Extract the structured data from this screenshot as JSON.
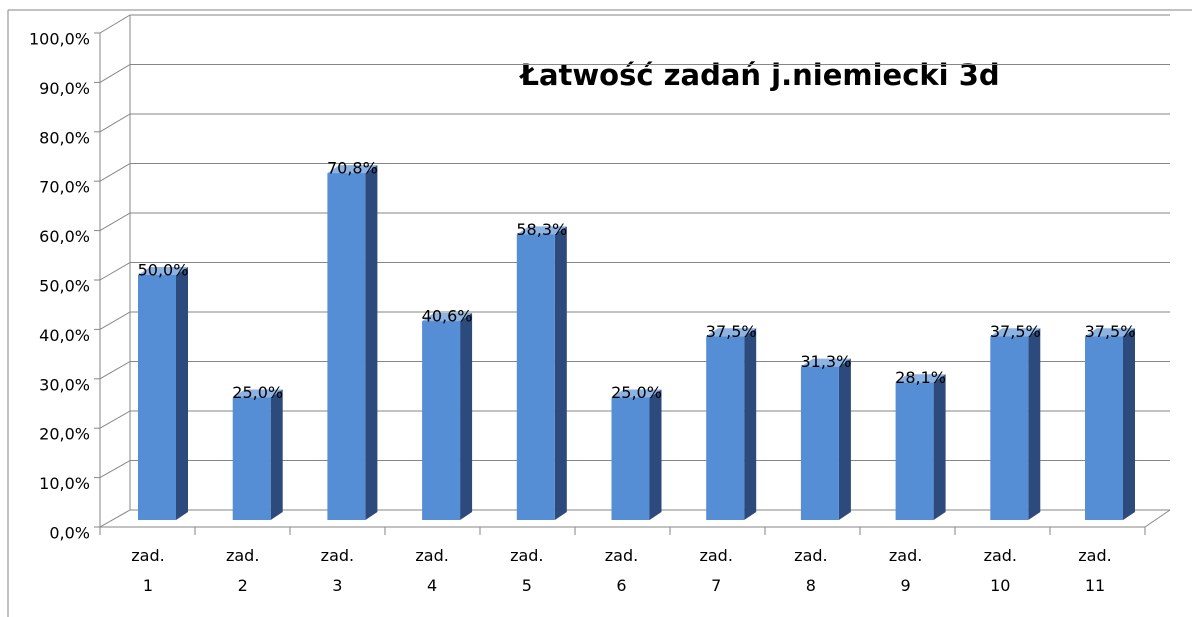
{
  "chart_data": {
    "type": "bar3d",
    "title": "Łatwość zadań j.niemiecki 3d",
    "categories": [
      "zad. 1",
      "zad. 2",
      "zad. 3",
      "zad. 4",
      "zad. 5",
      "zad. 6",
      "zad. 7",
      "zad. 8",
      "zad. 9",
      "zad. 10",
      "zad. 11"
    ],
    "values": [
      50,
      25,
      70.8,
      40.6,
      58.3,
      25,
      37.5,
      31.3,
      28.1,
      37.5,
      37.5
    ],
    "value_labels": [
      "50,0%",
      "25,0%",
      "70,8%",
      "40,6%",
      "58,3%",
      "25,0%",
      "37,5%",
      "31,3%",
      "28,1%",
      "37,5%",
      "37,5%"
    ],
    "color": "#558ed5",
    "ylim": [
      0,
      100
    ],
    "yticks": [
      {
        "value": 0,
        "label": "0,0%"
      },
      {
        "value": 10,
        "label": "10,0%"
      },
      {
        "value": 20,
        "label": "20,0%"
      },
      {
        "value": 30,
        "label": "30,0%"
      },
      {
        "value": 40,
        "label": "40,0%"
      },
      {
        "value": 50,
        "label": "50,0%"
      },
      {
        "value": 60,
        "label": "60,0%"
      },
      {
        "value": 70,
        "label": "70,0%"
      },
      {
        "value": 80,
        "label": "80,0%"
      },
      {
        "value": 90,
        "label": "90,0%"
      },
      {
        "value": 100,
        "label": "100,0%"
      }
    ],
    "grid": true
  }
}
